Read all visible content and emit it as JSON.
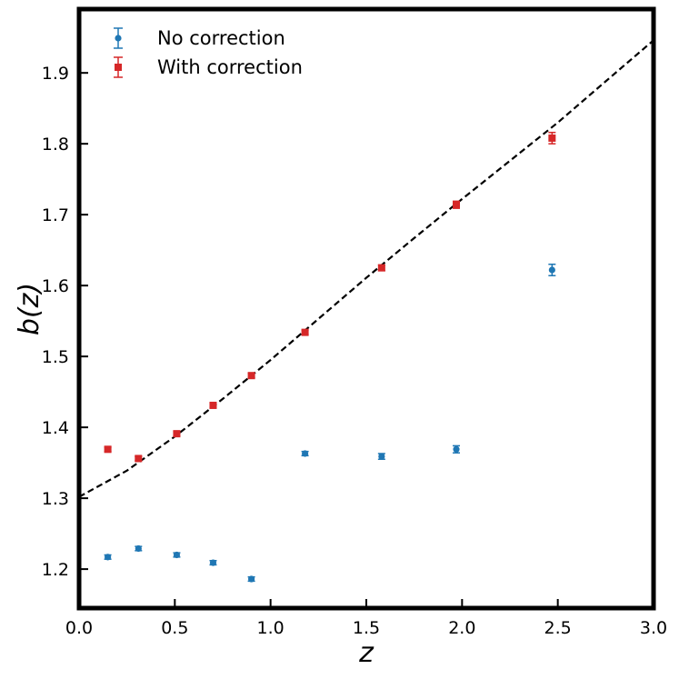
{
  "chart_data": {
    "type": "scatter",
    "title": "",
    "xlabel": "z",
    "ylabel": "b(z)",
    "xlim": [
      0.0,
      3.0
    ],
    "ylim": [
      1.145,
      1.99
    ],
    "xticks": [
      0.0,
      0.5,
      1.0,
      1.5,
      2.0,
      2.5,
      3.0
    ],
    "xtick_labels": [
      "0.0",
      "0.5",
      "1.0",
      "1.5",
      "2.0",
      "2.5",
      "3.0"
    ],
    "yticks": [
      1.2,
      1.3,
      1.4,
      1.5,
      1.6,
      1.7,
      1.8,
      1.9
    ],
    "ytick_labels": [
      "1.2",
      "1.3",
      "1.4",
      "1.5",
      "1.6",
      "1.7",
      "1.8",
      "1.9"
    ],
    "grid": false,
    "legend_position": "top-left",
    "series": [
      {
        "name": "No correction",
        "color": "#1f77b4",
        "marker": "circle",
        "x": [
          0.15,
          0.31,
          0.51,
          0.7,
          0.9,
          1.18,
          1.58,
          1.97,
          2.47
        ],
        "y": [
          1.217,
          1.229,
          1.22,
          1.209,
          1.186,
          1.363,
          1.359,
          1.369,
          1.622
        ],
        "yerr": [
          0.003,
          0.003,
          0.003,
          0.003,
          0.003,
          0.003,
          0.004,
          0.005,
          0.008
        ]
      },
      {
        "name": "With correction",
        "color": "#d62728",
        "marker": "square",
        "x": [
          0.15,
          0.31,
          0.51,
          0.7,
          0.9,
          1.18,
          1.58,
          1.97,
          2.47
        ],
        "y": [
          1.369,
          1.356,
          1.391,
          1.431,
          1.473,
          1.534,
          1.625,
          1.714,
          1.808
        ],
        "yerr": [
          0.003,
          0.003,
          0.003,
          0.003,
          0.003,
          0.003,
          0.004,
          0.005,
          0.008
        ]
      }
    ],
    "model_line": {
      "style": "dashed",
      "color": "#000000",
      "x": [
        0.0,
        0.25,
        0.5,
        0.75,
        1.0,
        1.25,
        1.5,
        1.75,
        2.0,
        2.25,
        2.5,
        2.75,
        3.0
      ],
      "y": [
        1.302,
        1.339,
        1.387,
        1.44,
        1.495,
        1.553,
        1.611,
        1.667,
        1.722,
        1.776,
        1.83,
        1.888,
        1.946
      ]
    }
  }
}
